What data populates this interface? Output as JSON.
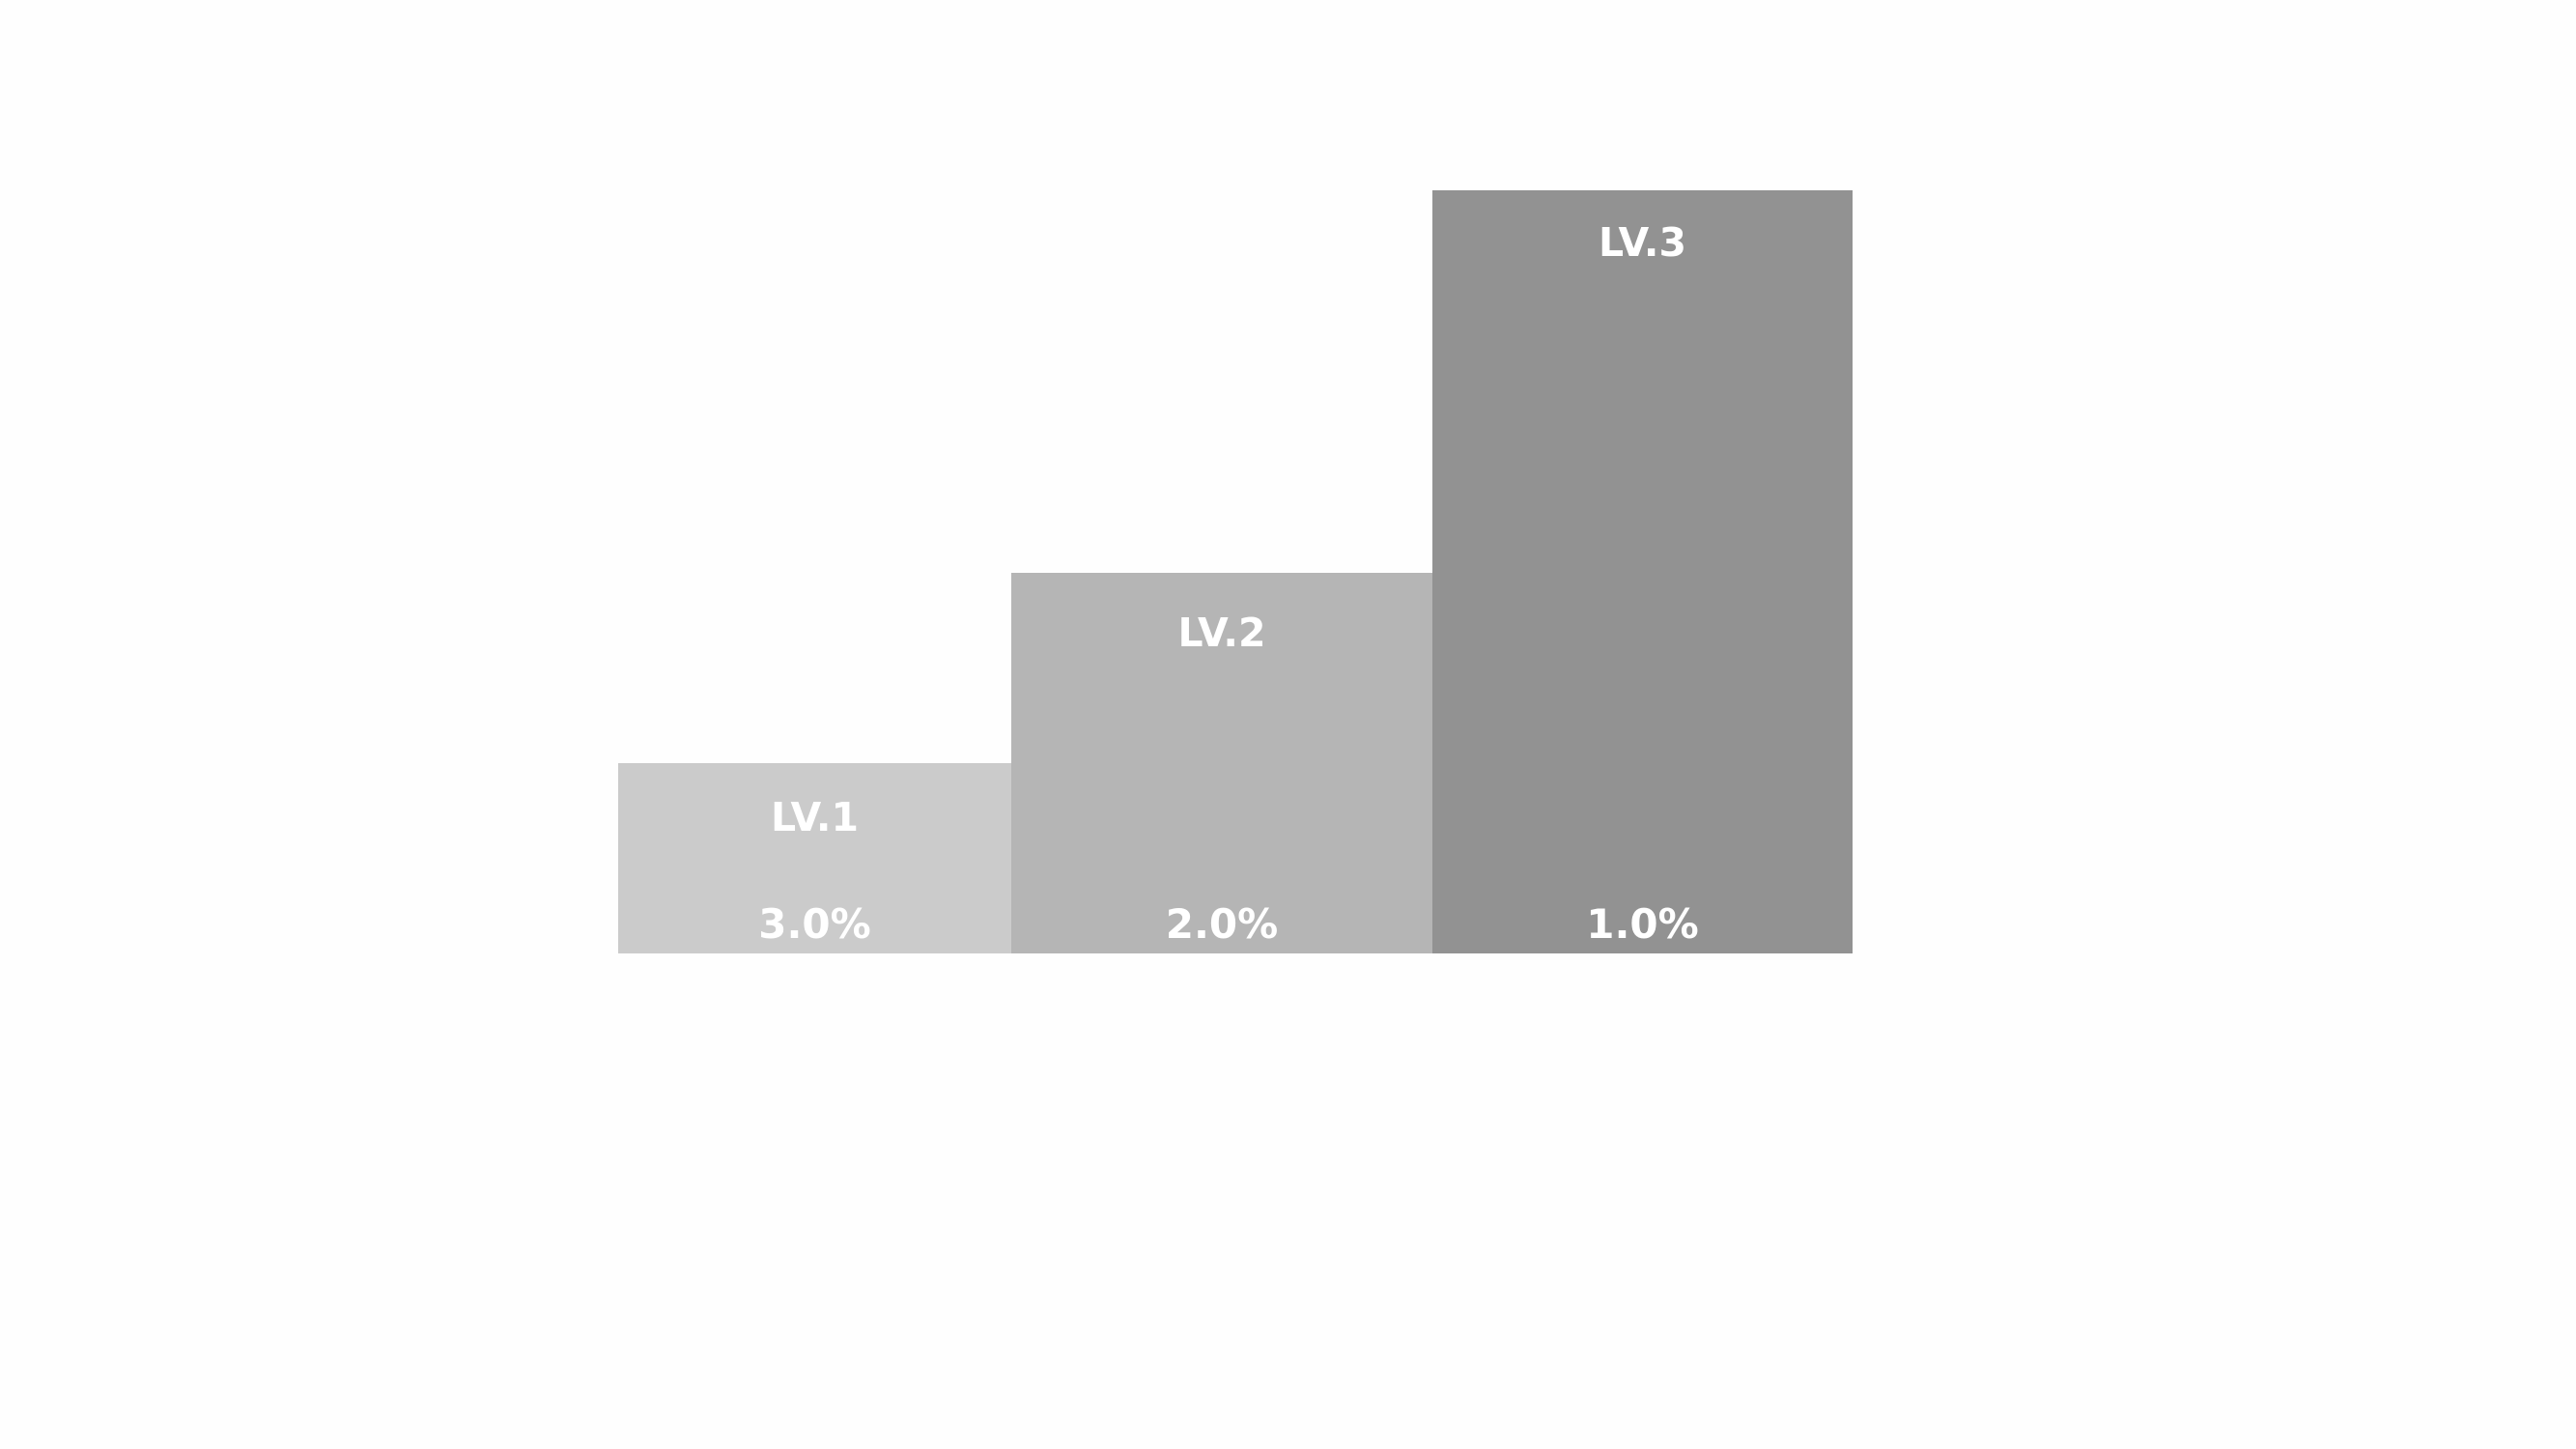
{
  "steps": [
    {
      "label": "LV.1",
      "rate": "3.0%",
      "color": "#cbcbcb"
    },
    {
      "label": "LV.2",
      "rate": "2.0%",
      "color": "#b5b5b5"
    },
    {
      "label": "LV.3",
      "rate": "1.0%",
      "color": "#929292"
    }
  ]
}
